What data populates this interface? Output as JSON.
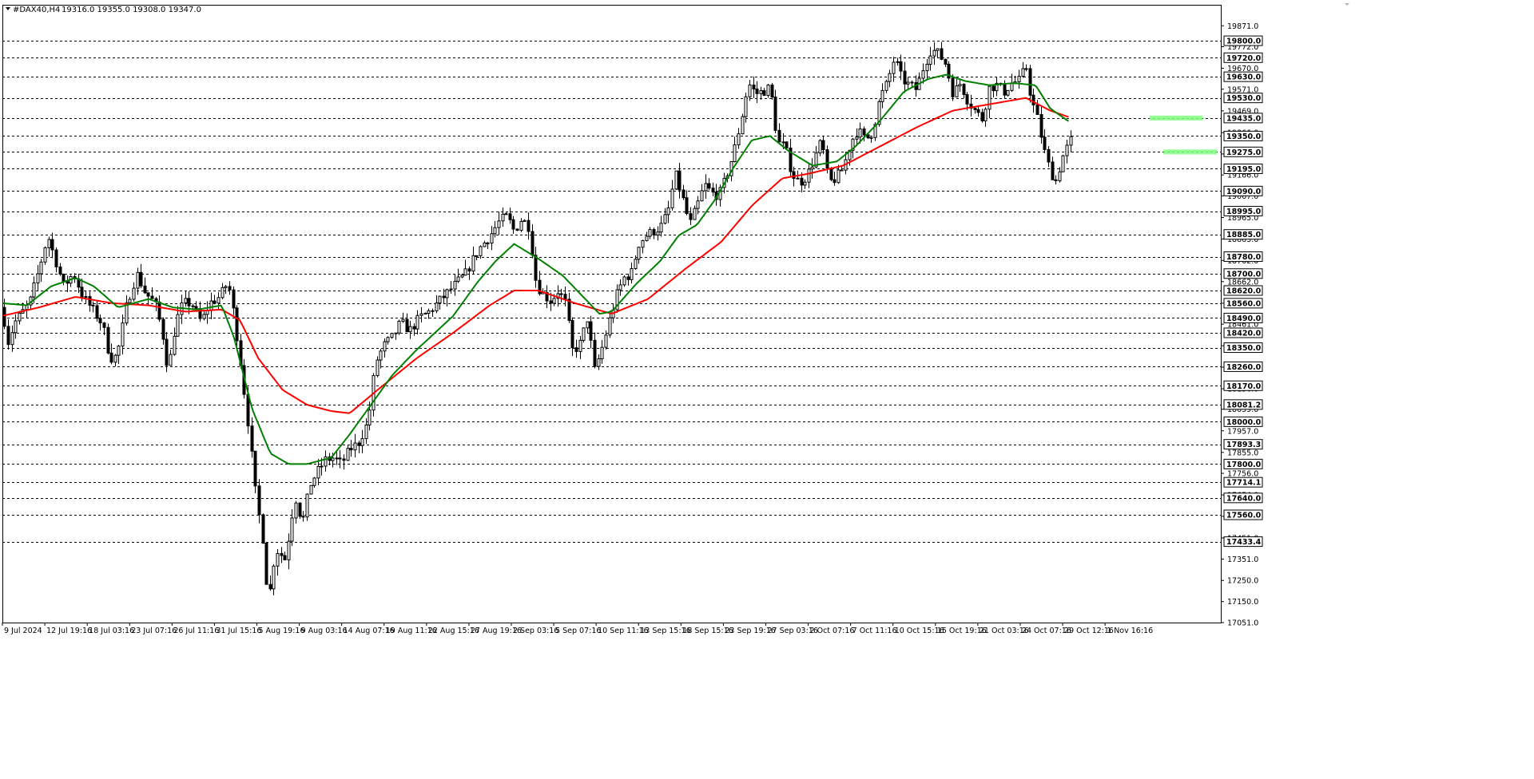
{
  "window": {
    "symbol_label": "#DAX40,H4",
    "ohlc_label": "19316.0 19355.0 19308.0 19347.0"
  },
  "colors": {
    "background": "#ffffff",
    "candle": "#000000",
    "grid": "#000000",
    "ma_fast": "#008000",
    "ma_slow": "#ff0000",
    "zone": "#7fff7f"
  },
  "chart_data": {
    "type": "candlestick",
    "symbol": "#DAX40",
    "timeframe": "H4",
    "ylim": [
      17051,
      19970
    ],
    "x_ticks": [
      "9 Jul 2024",
      "12 Jul 19:16",
      "18 Jul 03:16",
      "23 Jul 07:16",
      "26 Jul 11:16",
      "31 Jul 15:16",
      "5 Aug 19:16",
      "9 Aug 03:16",
      "14 Aug 07:16",
      "19 Aug 11:16",
      "22 Aug 15:16",
      "27 Aug 19:16",
      "2 Sep 03:16",
      "5 Sep 07:16",
      "10 Sep 11:16",
      "13 Sep 15:16",
      "18 Sep 15:16",
      "23 Sep 19:16",
      "27 Sep 03:16",
      "2 Oct 07:16",
      "7 Oct 11:16",
      "10 Oct 15:16",
      "15 Oct 19:16",
      "21 Oct 03:16",
      "24 Oct 07:16",
      "29 Oct 12:16",
      "1 Nov 16:16"
    ],
    "y_ticks": [
      "19871.0",
      "19772.0",
      "19670.0",
      "19571.0",
      "19469.0",
      "19366.0",
      "19265.0",
      "19166.0",
      "19067.0",
      "18965.0",
      "18863.0",
      "18762.0",
      "18662.0",
      "18560.0",
      "18461.0",
      "18359.0",
      "18258.0",
      "18156.0",
      "18059.0",
      "17957.0",
      "17855.0",
      "17756.0",
      "17654.0",
      "17553.0",
      "17451.0",
      "17351.0",
      "17250.0",
      "17150.0",
      "17051.0"
    ],
    "levels": [
      "19800.0",
      "19720.0",
      "19630.0",
      "19530.0",
      "19435.0",
      "19350.0",
      "19275.0",
      "19195.0",
      "19090.0",
      "18995.0",
      "18885.0",
      "18780.0",
      "18700.0",
      "18620.0",
      "18560.0",
      "18490.0",
      "18420.0",
      "18350.0",
      "18260.0",
      "18170.0",
      "18081.2",
      "18000.0",
      "17893.3",
      "17800.0",
      "17714.1",
      "17640.0",
      "17560.0",
      "17433.4"
    ],
    "zones": [
      {
        "value": 19435,
        "start": 0.9415,
        "end": 0.985
      },
      {
        "value": 19275,
        "start": 0.953,
        "end": 0.997
      }
    ],
    "anchors": [
      [
        0,
        18540
      ],
      [
        0.004,
        18370
      ],
      [
        0.01,
        18470
      ],
      [
        0.022,
        18560
      ],
      [
        0.03,
        18720
      ],
      [
        0.037,
        18880
      ],
      [
        0.043,
        18770
      ],
      [
        0.05,
        18640
      ],
      [
        0.058,
        18700
      ],
      [
        0.066,
        18590
      ],
      [
        0.075,
        18520
      ],
      [
        0.082,
        18460
      ],
      [
        0.088,
        18300
      ],
      [
        0.094,
        18310
      ],
      [
        0.102,
        18560
      ],
      [
        0.11,
        18700
      ],
      [
        0.117,
        18610
      ],
      [
        0.125,
        18560
      ],
      [
        0.131,
        18430
      ],
      [
        0.136,
        18240
      ],
      [
        0.142,
        18470
      ],
      [
        0.148,
        18560
      ],
      [
        0.155,
        18560
      ],
      [
        0.163,
        18470
      ],
      [
        0.17,
        18560
      ],
      [
        0.178,
        18590
      ],
      [
        0.185,
        18660
      ],
      [
        0.19,
        18500
      ],
      [
        0.196,
        18250
      ],
      [
        0.202,
        17970
      ],
      [
        0.208,
        17640
      ],
      [
        0.214,
        17430
      ],
      [
        0.218,
        17140
      ],
      [
        0.224,
        17400
      ],
      [
        0.232,
        17350
      ],
      [
        0.24,
        17650
      ],
      [
        0.246,
        17520
      ],
      [
        0.252,
        17700
      ],
      [
        0.258,
        17760
      ],
      [
        0.265,
        17820
      ],
      [
        0.272,
        17830
      ],
      [
        0.278,
        17800
      ],
      [
        0.285,
        17870
      ],
      [
        0.292,
        17900
      ],
      [
        0.3,
        18000
      ],
      [
        0.306,
        18280
      ],
      [
        0.313,
        18360
      ],
      [
        0.32,
        18400
      ],
      [
        0.327,
        18470
      ],
      [
        0.334,
        18430
      ],
      [
        0.342,
        18490
      ],
      [
        0.35,
        18520
      ],
      [
        0.36,
        18580
      ],
      [
        0.37,
        18640
      ],
      [
        0.38,
        18700
      ],
      [
        0.39,
        18810
      ],
      [
        0.4,
        18880
      ],
      [
        0.408,
        18950
      ],
      [
        0.414,
        18970
      ],
      [
        0.42,
        18900
      ],
      [
        0.426,
        18960
      ],
      [
        0.432,
        18920
      ],
      [
        0.438,
        18650
      ],
      [
        0.444,
        18600
      ],
      [
        0.45,
        18570
      ],
      [
        0.456,
        18620
      ],
      [
        0.462,
        18560
      ],
      [
        0.468,
        18330
      ],
      [
        0.474,
        18370
      ],
      [
        0.48,
        18490
      ],
      [
        0.486,
        18240
      ],
      [
        0.492,
        18350
      ],
      [
        0.498,
        18480
      ],
      [
        0.504,
        18600
      ],
      [
        0.51,
        18680
      ],
      [
        0.516,
        18700
      ],
      [
        0.522,
        18840
      ],
      [
        0.528,
        18880
      ],
      [
        0.534,
        18900
      ],
      [
        0.54,
        18920
      ],
      [
        0.546,
        18990
      ],
      [
        0.552,
        19170
      ],
      [
        0.558,
        19060
      ],
      [
        0.564,
        18930
      ],
      [
        0.57,
        19020
      ],
      [
        0.576,
        19120
      ],
      [
        0.582,
        19080
      ],
      [
        0.588,
        19070
      ],
      [
        0.594,
        19160
      ],
      [
        0.6,
        19270
      ],
      [
        0.606,
        19420
      ],
      [
        0.612,
        19600
      ],
      [
        0.618,
        19550
      ],
      [
        0.624,
        19560
      ],
      [
        0.63,
        19580
      ],
      [
        0.636,
        19320
      ],
      [
        0.642,
        19300
      ],
      [
        0.648,
        19170
      ],
      [
        0.654,
        19130
      ],
      [
        0.66,
        19160
      ],
      [
        0.666,
        19240
      ],
      [
        0.672,
        19330
      ],
      [
        0.678,
        19130
      ],
      [
        0.684,
        19150
      ],
      [
        0.69,
        19200
      ],
      [
        0.696,
        19320
      ],
      [
        0.702,
        19380
      ],
      [
        0.708,
        19330
      ],
      [
        0.714,
        19370
      ],
      [
        0.72,
        19530
      ],
      [
        0.726,
        19600
      ],
      [
        0.732,
        19720
      ],
      [
        0.738,
        19620
      ],
      [
        0.744,
        19590
      ],
      [
        0.75,
        19570
      ],
      [
        0.756,
        19680
      ],
      [
        0.762,
        19760
      ],
      [
        0.768,
        19740
      ],
      [
        0.774,
        19690
      ],
      [
        0.78,
        19550
      ],
      [
        0.786,
        19600
      ],
      [
        0.792,
        19520
      ],
      [
        0.798,
        19470
      ],
      [
        0.804,
        19430
      ],
      [
        0.81,
        19580
      ],
      [
        0.816,
        19590
      ],
      [
        0.822,
        19560
      ],
      [
        0.828,
        19600
      ],
      [
        0.834,
        19610
      ],
      [
        0.84,
        19680
      ],
      [
        0.844,
        19530
      ],
      [
        0.85,
        19420
      ],
      [
        0.854,
        19300
      ],
      [
        0.859,
        19200
      ],
      [
        0.864,
        19130
      ],
      [
        0.87,
        19250
      ],
      [
        0.874,
        19300
      ],
      [
        0.878,
        19347
      ]
    ],
    "ma_fast_anchors": [
      [
        0,
        18560
      ],
      [
        0.02,
        18550
      ],
      [
        0.04,
        18640
      ],
      [
        0.06,
        18680
      ],
      [
        0.075,
        18640
      ],
      [
        0.095,
        18540
      ],
      [
        0.12,
        18580
      ],
      [
        0.14,
        18540
      ],
      [
        0.16,
        18530
      ],
      [
        0.18,
        18550
      ],
      [
        0.19,
        18400
      ],
      [
        0.205,
        18060
      ],
      [
        0.22,
        17850
      ],
      [
        0.235,
        17800
      ],
      [
        0.25,
        17800
      ],
      [
        0.27,
        17830
      ],
      [
        0.285,
        17940
      ],
      [
        0.3,
        18060
      ],
      [
        0.32,
        18220
      ],
      [
        0.34,
        18340
      ],
      [
        0.37,
        18500
      ],
      [
        0.39,
        18660
      ],
      [
        0.405,
        18760
      ],
      [
        0.42,
        18840
      ],
      [
        0.44,
        18770
      ],
      [
        0.46,
        18690
      ],
      [
        0.475,
        18600
      ],
      [
        0.49,
        18510
      ],
      [
        0.5,
        18520
      ],
      [
        0.52,
        18650
      ],
      [
        0.54,
        18760
      ],
      [
        0.555,
        18880
      ],
      [
        0.57,
        18930
      ],
      [
        0.585,
        19050
      ],
      [
        0.6,
        19200
      ],
      [
        0.615,
        19330
      ],
      [
        0.63,
        19350
      ],
      [
        0.645,
        19280
      ],
      [
        0.665,
        19210
      ],
      [
        0.685,
        19230
      ],
      [
        0.7,
        19300
      ],
      [
        0.72,
        19420
      ],
      [
        0.74,
        19560
      ],
      [
        0.76,
        19620
      ],
      [
        0.775,
        19640
      ],
      [
        0.79,
        19610
      ],
      [
        0.81,
        19590
      ],
      [
        0.83,
        19600
      ],
      [
        0.848,
        19590
      ],
      [
        0.86,
        19480
      ],
      [
        0.875,
        19420
      ]
    ],
    "ma_slow_anchors": [
      [
        0,
        18500
      ],
      [
        0.03,
        18540
      ],
      [
        0.06,
        18590
      ],
      [
        0.09,
        18560
      ],
      [
        0.12,
        18550
      ],
      [
        0.15,
        18520
      ],
      [
        0.18,
        18530
      ],
      [
        0.195,
        18480
      ],
      [
        0.21,
        18300
      ],
      [
        0.23,
        18150
      ],
      [
        0.25,
        18080
      ],
      [
        0.27,
        18050
      ],
      [
        0.285,
        18040
      ],
      [
        0.31,
        18160
      ],
      [
        0.34,
        18300
      ],
      [
        0.37,
        18420
      ],
      [
        0.4,
        18550
      ],
      [
        0.42,
        18620
      ],
      [
        0.44,
        18620
      ],
      [
        0.47,
        18560
      ],
      [
        0.5,
        18510
      ],
      [
        0.53,
        18580
      ],
      [
        0.56,
        18720
      ],
      [
        0.59,
        18850
      ],
      [
        0.615,
        19020
      ],
      [
        0.64,
        19150
      ],
      [
        0.66,
        19170
      ],
      [
        0.69,
        19210
      ],
      [
        0.72,
        19300
      ],
      [
        0.75,
        19390
      ],
      [
        0.78,
        19470
      ],
      [
        0.81,
        19500
      ],
      [
        0.84,
        19530
      ],
      [
        0.86,
        19470
      ],
      [
        0.875,
        19440
      ]
    ]
  }
}
